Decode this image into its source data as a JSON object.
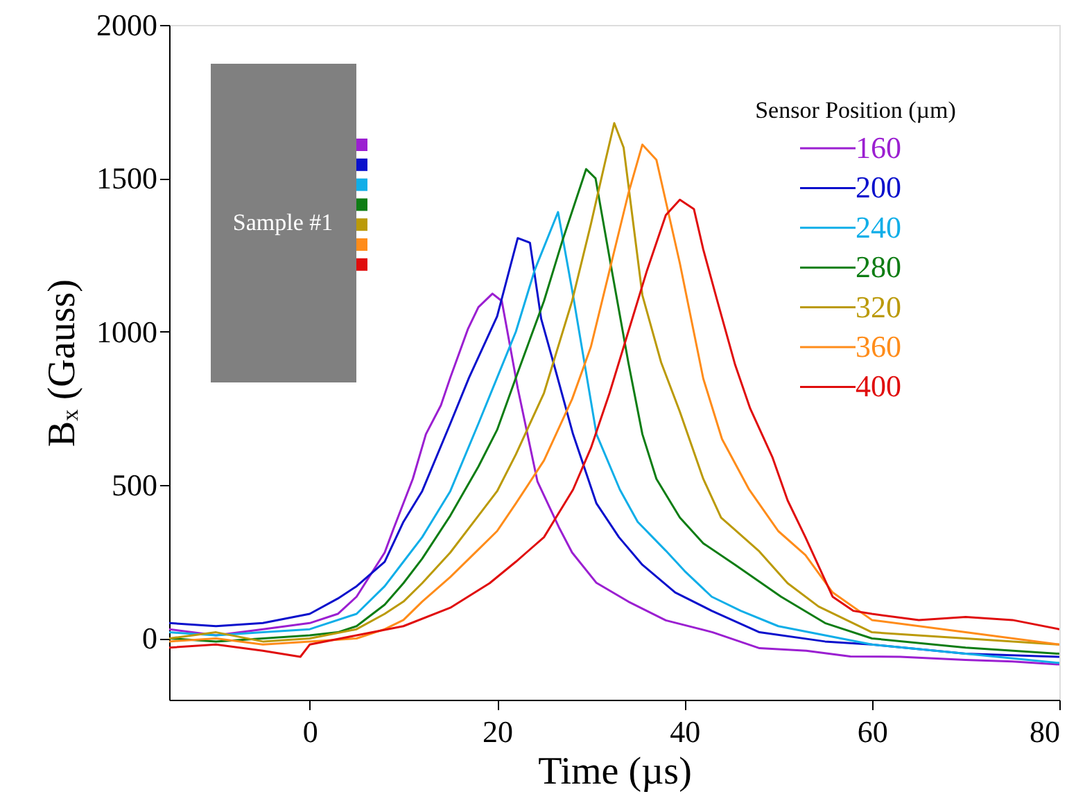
{
  "chart_data": {
    "type": "line",
    "xlabel": "Time (µs)",
    "ylabel": "Bₓ (Gauss)",
    "legend_title": "Sensor Position (µm)",
    "legend": "top right",
    "grid": false,
    "line_style": "solid",
    "xlim": [
      -15,
      80
    ],
    "xticks": [
      0,
      20,
      40,
      60,
      80
    ],
    "ylim": [
      -200,
      2000
    ],
    "yticks": [
      0,
      500,
      1000,
      1500,
      2000
    ],
    "annotations": [
      "Sample #1"
    ],
    "series": [
      {
        "name": "160",
        "color": "#9b1fd1",
        "x": [
          -15,
          -10,
          -5,
          0,
          3,
          5,
          8,
          9,
          11,
          12.4,
          14,
          15,
          16.9,
          18,
          19.5,
          20.5,
          22.2,
          23,
          24.3,
          26.6,
          28,
          30.6,
          34,
          38,
          43,
          48,
          53,
          57.7,
          63,
          70,
          75,
          80
        ],
        "values": [
          30,
          10,
          30,
          50,
          80,
          136,
          280,
          362,
          520,
          666,
          760,
          850,
          1010,
          1080,
          1124,
          1100,
          816,
          700,
          512,
          362,
          280,
          181,
          120,
          59,
          20,
          -32,
          -40,
          -59,
          -60,
          -70,
          -75,
          -85
        ]
      },
      {
        "name": "200",
        "color": "#0a10cc",
        "x": [
          -15,
          -10,
          -5,
          0,
          3,
          5,
          8,
          10,
          12,
          15,
          17,
          20,
          22.2,
          23.5,
          24.7,
          26,
          28.1,
          30.6,
          33,
          35.5,
          39,
          42.9,
          48,
          55,
          60,
          70,
          80
        ],
        "values": [
          50,
          40,
          50,
          80,
          130,
          170,
          250,
          380,
          480,
          700,
          850,
          1050,
          1305,
          1290,
          1042,
          900,
          666,
          440,
          330,
          240,
          150,
          90,
          20,
          -10,
          -20,
          -50,
          -60
        ]
      },
      {
        "name": "240",
        "color": "#10aee8",
        "x": [
          -15,
          -10,
          -5,
          0,
          5,
          8,
          10,
          12,
          15,
          18,
          20,
          22,
          24,
          26.5,
          28.1,
          30.6,
          33.1,
          35,
          38,
          40,
          42.9,
          46,
          50,
          55,
          60,
          70,
          80
        ],
        "values": [
          20,
          10,
          20,
          30,
          80,
          170,
          250,
          330,
          480,
          700,
          850,
          1000,
          1200,
          1390,
          1119,
          666,
          485,
          380,
          286,
          220,
          136,
          90,
          40,
          10,
          -20,
          -50,
          -80
        ]
      },
      {
        "name": "280",
        "color": "#0e7d14",
        "x": [
          -15,
          -10,
          -5,
          0,
          3,
          5,
          8,
          10,
          12,
          15,
          18,
          20,
          22,
          25,
          27,
          29.5,
          30.5,
          32.1,
          34,
          35.5,
          37,
          39.5,
          42,
          45.4,
          50.3,
          55,
          60,
          70,
          80
        ],
        "values": [
          0,
          -10,
          0,
          10,
          20,
          40,
          110,
          180,
          260,
          400,
          560,
          680,
          850,
          1100,
          1300,
          1530,
          1500,
          1223,
          900,
          666,
          520,
          394,
          310,
          240,
          136,
          50,
          0,
          -30,
          -50
        ]
      },
      {
        "name": "320",
        "color": "#bb9a08",
        "x": [
          -15,
          -10,
          -5,
          0,
          5,
          8,
          10,
          12,
          15,
          18,
          20,
          22,
          25,
          28,
          30,
          31.5,
          32.5,
          33.5,
          35.5,
          37.5,
          39.5,
          42,
          43.9,
          47.9,
          51,
          54.3,
          60,
          70,
          80
        ],
        "values": [
          0,
          20,
          -10,
          0,
          30,
          80,
          120,
          180,
          280,
          400,
          480,
          600,
          800,
          1100,
          1350,
          1550,
          1680,
          1600,
          1119,
          900,
          739,
          520,
          394,
          286,
          180,
          104,
          20,
          0,
          -20
        ]
      },
      {
        "name": "360",
        "color": "#ff8c1a",
        "x": [
          -15,
          -10,
          -5,
          0,
          5,
          8,
          10,
          12,
          15,
          18,
          20,
          22,
          25,
          28,
          30,
          32,
          34,
          35.5,
          37,
          39.5,
          42,
          44,
          46.9,
          50,
          52.9,
          55.8,
          60,
          70,
          80
        ],
        "values": [
          -10,
          0,
          -20,
          -10,
          0,
          30,
          60,
          120,
          200,
          290,
          350,
          440,
          580,
          780,
          950,
          1200,
          1450,
          1610,
          1560,
          1223,
          847,
          650,
          485,
          350,
          272,
          150,
          60,
          20,
          -20
        ]
      },
      {
        "name": "400",
        "color": "#e00d0d",
        "x": [
          -15,
          -10,
          -5,
          -1,
          0,
          5,
          10,
          15,
          19.2,
          22,
          25,
          28.1,
          30,
          32,
          34,
          36,
          38,
          39.5,
          41,
          42,
          43.5,
          45.4,
          47,
          49.4,
          51,
          52.9,
          55.8,
          58,
          60,
          65,
          70,
          75,
          80
        ],
        "values": [
          -30,
          -20,
          -40,
          -60,
          -20,
          10,
          40,
          100,
          180,
          250,
          330,
          485,
          620,
          800,
          1000,
          1200,
          1380,
          1430,
          1400,
          1268,
          1100,
          892,
          750,
          589,
          450,
          330,
          136,
          90,
          80,
          60,
          70,
          60,
          30
        ]
      }
    ]
  }
}
